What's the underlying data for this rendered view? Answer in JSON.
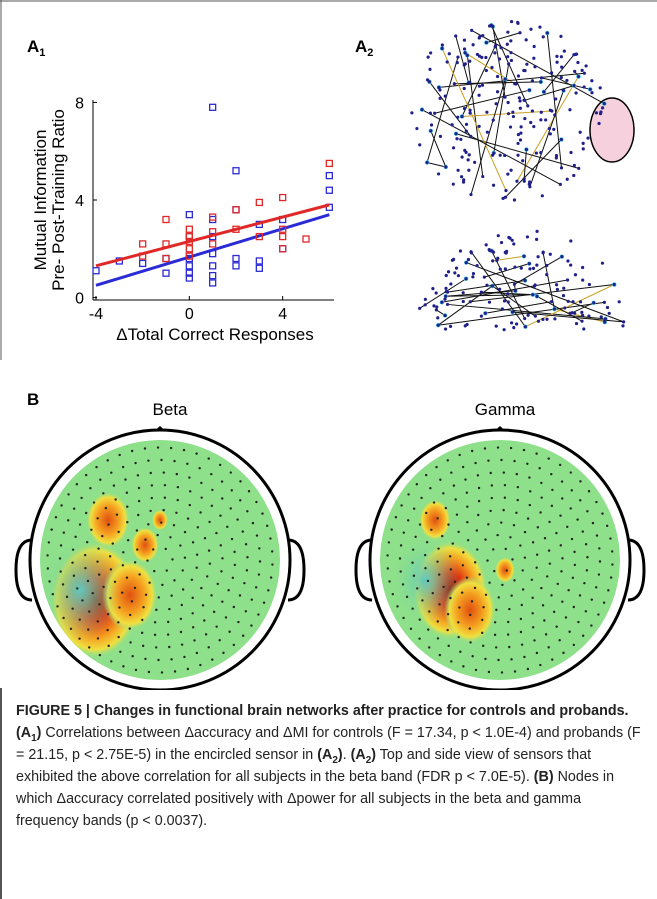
{
  "panels": {
    "a1": {
      "label": "A",
      "sub": "1"
    },
    "a2": {
      "label": "A",
      "sub": "2"
    },
    "b": {
      "label": "B",
      "titles": [
        "Beta",
        "Gamma"
      ]
    }
  },
  "chart_data": {
    "type": "scatter",
    "ylabel": [
      "Mutual Information",
      "Pre- Post-Training Ratio"
    ],
    "xlabel": "ΔTotal Correct Responses",
    "xlim": [
      -4,
      6.2
    ],
    "ylim": [
      -0.1,
      8.1
    ],
    "xticks": [
      -4,
      0,
      4
    ],
    "yticks": [
      0,
      4,
      8
    ],
    "series": [
      {
        "color": "#2b2bd6",
        "x": [
          1,
          -4,
          -3,
          -2,
          -1,
          -1,
          0,
          0,
          0,
          0,
          0,
          0,
          1,
          1,
          1,
          1,
          1,
          1,
          2,
          2,
          2,
          2,
          3,
          3,
          3,
          4,
          4,
          6,
          6,
          6
        ],
        "values": [
          7.8,
          1.1,
          1.5,
          1.4,
          1.0,
          1.6,
          3.4,
          2.5,
          1.6,
          1.3,
          1.0,
          0.8,
          3.2,
          2.5,
          1.8,
          1.3,
          0.9,
          0.6,
          5.2,
          3.6,
          1.6,
          1.3,
          1.5,
          1.2,
          3.0,
          3.2,
          2.0,
          4.4,
          3.7,
          5.0
        ],
        "fit_x": [
          -4,
          6
        ],
        "fit_values": [
          0.5,
          3.4
        ]
      },
      {
        "color": "#e02828",
        "x": [
          -2,
          -2,
          -1,
          -1,
          -1,
          0,
          0,
          0,
          0,
          0,
          1,
          1,
          1,
          2,
          2,
          3,
          3,
          4,
          4,
          4,
          4,
          5,
          6
        ],
        "values": [
          2.2,
          1.7,
          3.2,
          2.2,
          1.6,
          2.8,
          2.5,
          2.3,
          2.0,
          1.7,
          3.3,
          2.7,
          2.2,
          3.6,
          2.8,
          3.9,
          2.5,
          4.1,
          2.8,
          2.5,
          2.0,
          2.4,
          5.5
        ],
        "fit_x": [
          -4,
          6
        ],
        "fit_values": [
          1.3,
          3.8
        ]
      }
    ]
  },
  "caption": {
    "segments": [
      "FIGURE 5 | Changes in functional brain networks after practice for controls and probands.",
      "(A",
      "1",
      ")",
      " Correlations between Δaccuracy and ΔMI for controls (F = 17.34, p < 1.0E-4) and probands (F = 21.15, p < 2.75E-5) in the encircled sensor in ",
      "(A",
      "2",
      ")",
      ". ",
      "(A",
      "2",
      ")",
      " Top and side view of sensors that exhibited the above correlation for all subjects in the beta band (FDR p < 7.0E-5). ",
      "(B)",
      " Nodes in which Δaccuracy correlated positively with Δpower for all subjects in the beta and gamma frequency bands (p < 0.0037)."
    ]
  }
}
